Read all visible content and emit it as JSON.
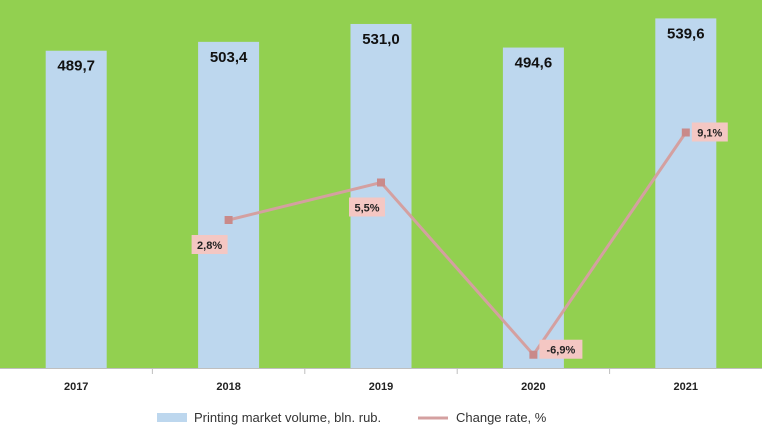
{
  "chart_data": {
    "type": "bar",
    "categories": [
      "2017",
      "2018",
      "2019",
      "2020",
      "2021"
    ],
    "series": [
      {
        "name": "Printing market volume, bln. rub.",
        "type": "bar",
        "values": [
          489.7,
          503.4,
          531.0,
          494.6,
          539.6
        ],
        "labels": [
          "489,7",
          "503,4",
          "531,0",
          "494,6",
          "539,6"
        ]
      },
      {
        "name": "Change rate, %",
        "type": "line",
        "values": [
          null,
          2.8,
          5.5,
          -6.9,
          9.1
        ],
        "labels": [
          "",
          "2,8%",
          "5,5%",
          "-6,9%",
          "9,1%"
        ]
      }
    ],
    "grid": false,
    "legend": "bottom",
    "colors": {
      "plot_background": "#92d050",
      "bar": "#bdd7ee",
      "line": "#d4a0a0",
      "label_box": "#f4c7c3"
    }
  }
}
